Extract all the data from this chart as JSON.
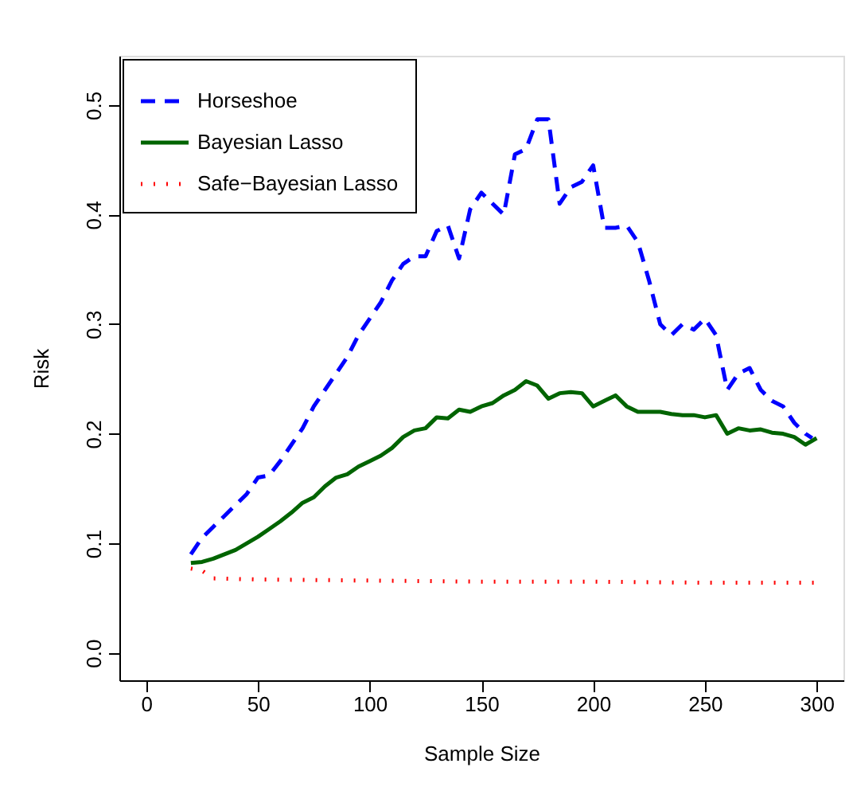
{
  "chart_data": {
    "type": "line",
    "xlabel": "Sample Size",
    "ylabel": "Risk",
    "xlim": [
      -12,
      312
    ],
    "ylim": [
      -0.025,
      0.545
    ],
    "xticks": [
      0,
      50,
      100,
      150,
      200,
      250,
      300
    ],
    "yticks": [
      {
        "value": 0,
        "label": "0.0"
      },
      {
        "value": 0.1,
        "label": "0.1"
      },
      {
        "value": 0.2,
        "label": "0.2"
      },
      {
        "value": 0.3,
        "label": "0.3"
      },
      {
        "value": 0.4,
        "label": "0.4"
      },
      {
        "value": 0.5,
        "label": "0.5"
      }
    ],
    "grid": false,
    "legend": "top left",
    "marker": "none",
    "series": [
      {
        "name": "Horseshoe",
        "color": "#0000ff",
        "line_style": "dashed",
        "x": [
          20,
          25,
          30,
          35,
          40,
          45,
          50,
          55,
          60,
          65,
          70,
          75,
          80,
          85,
          90,
          95,
          100,
          105,
          110,
          115,
          120,
          125,
          130,
          135,
          140,
          145,
          150,
          155,
          160,
          165,
          170,
          175,
          180,
          185,
          190,
          195,
          200,
          205,
          210,
          215,
          220,
          225,
          230,
          235,
          240,
          245,
          250,
          255,
          260,
          265,
          270,
          275,
          280,
          285,
          290,
          295,
          298
        ],
        "values": [
          0.09,
          0.105,
          0.115,
          0.125,
          0.135,
          0.145,
          0.16,
          0.162,
          0.175,
          0.19,
          0.205,
          0.225,
          0.24,
          0.255,
          0.27,
          0.29,
          0.305,
          0.32,
          0.34,
          0.355,
          0.362,
          0.362,
          0.385,
          0.39,
          0.36,
          0.405,
          0.42,
          0.41,
          0.4,
          0.455,
          0.46,
          0.487,
          0.487,
          0.41,
          0.425,
          0.43,
          0.445,
          0.388,
          0.388,
          0.39,
          0.375,
          0.34,
          0.3,
          0.29,
          0.3,
          0.295,
          0.305,
          0.29,
          0.24,
          0.255,
          0.26,
          0.24,
          0.23,
          0.225,
          0.21,
          0.2,
          0.196
        ]
      },
      {
        "name": "Bayesian Lasso",
        "color": "#006400",
        "line_style": "solid",
        "x": [
          20,
          25,
          30,
          35,
          40,
          45,
          50,
          55,
          60,
          65,
          70,
          75,
          80,
          85,
          90,
          95,
          100,
          105,
          110,
          115,
          120,
          125,
          130,
          135,
          140,
          145,
          150,
          155,
          160,
          165,
          170,
          175,
          180,
          185,
          190,
          195,
          200,
          205,
          210,
          215,
          220,
          225,
          230,
          235,
          240,
          245,
          250,
          255,
          260,
          265,
          270,
          275,
          280,
          285,
          290,
          295,
          300
        ],
        "values": [
          0.082,
          0.083,
          0.086,
          0.09,
          0.094,
          0.1,
          0.106,
          0.113,
          0.12,
          0.128,
          0.137,
          0.142,
          0.152,
          0.16,
          0.163,
          0.17,
          0.175,
          0.18,
          0.187,
          0.197,
          0.203,
          0.205,
          0.215,
          0.214,
          0.222,
          0.22,
          0.225,
          0.228,
          0.235,
          0.24,
          0.248,
          0.244,
          0.232,
          0.237,
          0.238,
          0.237,
          0.225,
          0.23,
          0.235,
          0.225,
          0.22,
          0.22,
          0.22,
          0.218,
          0.217,
          0.217,
          0.215,
          0.217,
          0.2,
          0.205,
          0.203,
          0.204,
          0.201,
          0.2,
          0.197,
          0.19,
          0.196
        ]
      },
      {
        "name": "Safe−Bayesian Lasso",
        "color": "#ff0000",
        "line_style": "dotted",
        "x": [
          20,
          25,
          30,
          50,
          100,
          150,
          200,
          250,
          300
        ],
        "values": [
          0.077,
          0.075,
          0.068,
          0.067,
          0.066,
          0.065,
          0.065,
          0.064,
          0.064
        ]
      }
    ]
  }
}
